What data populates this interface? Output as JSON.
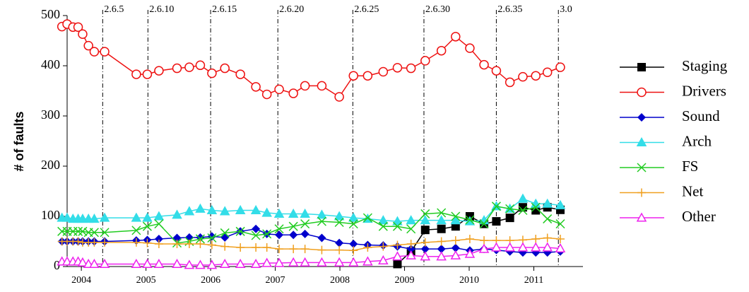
{
  "chart_data": {
    "type": "line",
    "y_label": "# of faults",
    "ylim": [
      0,
      500
    ],
    "yticks": [
      0,
      100,
      200,
      300,
      400,
      500
    ],
    "xlim": [
      2003.78,
      2011.76
    ],
    "xticks": [
      2004,
      2005,
      2006,
      2007,
      2008,
      2009,
      2010,
      2011
    ],
    "releases": [
      {
        "label": "2.6.5",
        "x": 2004.33
      },
      {
        "label": "2.6.10",
        "x": 2005.03
      },
      {
        "label": "2.6.15",
        "x": 2006.0
      },
      {
        "label": "2.6.20",
        "x": 2007.04
      },
      {
        "label": "2.6.25",
        "x": 2008.2
      },
      {
        "label": "2.6.30",
        "x": 2009.3
      },
      {
        "label": "2.6.35",
        "x": 2010.42
      },
      {
        "label": "3.0",
        "x": 2011.38
      }
    ],
    "x": [
      2003.7,
      2003.78,
      2003.87,
      2003.95,
      2004.02,
      2004.11,
      2004.2,
      2004.36,
      2004.85,
      2005.02,
      2005.2,
      2005.48,
      2005.67,
      2005.84,
      2006.02,
      2006.22,
      2006.46,
      2006.7,
      2006.87,
      2007.06,
      2007.28,
      2007.46,
      2007.72,
      2007.99,
      2008.21,
      2008.43,
      2008.67,
      2008.89,
      2009.1,
      2009.32,
      2009.57,
      2009.79,
      2010.01,
      2010.23,
      2010.42,
      2010.63,
      2010.83,
      2011.03,
      2011.21,
      2011.41
    ],
    "series": [
      {
        "name": "Staging",
        "color": "#000000",
        "marker": "square",
        "values": [
          null,
          null,
          null,
          null,
          null,
          null,
          null,
          null,
          null,
          null,
          null,
          null,
          null,
          null,
          null,
          null,
          null,
          null,
          null,
          null,
          null,
          null,
          null,
          null,
          null,
          null,
          null,
          5,
          30,
          73,
          75,
          80,
          100,
          85,
          90,
          97,
          118,
          112,
          118,
          113
        ]
      },
      {
        "name": "Drivers",
        "color": "#ee1111",
        "marker": "circle",
        "values": [
          478,
          483,
          477,
          477,
          463,
          440,
          428,
          428,
          383,
          383,
          390,
          395,
          397,
          401,
          385,
          395,
          383,
          358,
          343,
          353,
          345,
          360,
          360,
          338,
          380,
          380,
          388,
          396,
          395,
          410,
          430,
          458,
          435,
          402,
          390,
          367,
          378,
          380,
          387,
          397
        ]
      },
      {
        "name": "Sound",
        "color": "#0000cc",
        "marker": "diamond",
        "values": [
          50,
          50,
          50,
          50,
          50,
          50,
          50,
          50,
          52,
          53,
          55,
          57,
          58,
          58,
          60,
          58,
          70,
          75,
          65,
          63,
          63,
          65,
          57,
          47,
          45,
          43,
          42,
          40,
          35,
          35,
          35,
          37,
          32,
          35,
          33,
          30,
          28,
          28,
          28,
          30
        ]
      },
      {
        "name": "Arch",
        "color": "#33dde8",
        "marker": "triangle",
        "values": [
          97,
          97,
          95,
          95,
          95,
          95,
          95,
          97,
          97,
          97,
          100,
          103,
          110,
          115,
          112,
          110,
          112,
          112,
          107,
          105,
          105,
          105,
          103,
          100,
          97,
          95,
          92,
          90,
          92,
          92,
          92,
          92,
          90,
          92,
          120,
          115,
          135,
          125,
          125,
          122
        ]
      },
      {
        "name": "FS",
        "color": "#22cc22",
        "marker": "x",
        "values": [
          70,
          70,
          70,
          70,
          70,
          68,
          68,
          68,
          72,
          80,
          85,
          47,
          50,
          55,
          57,
          67,
          70,
          62,
          65,
          75,
          80,
          85,
          90,
          88,
          85,
          97,
          80,
          80,
          75,
          105,
          107,
          100,
          93,
          85,
          120,
          115,
          112,
          118,
          95,
          85
        ]
      },
      {
        "name": "Net",
        "color": "#f0a020",
        "marker": "plus",
        "values": [
          50,
          50,
          50,
          50,
          48,
          48,
          48,
          48,
          48,
          47,
          45,
          45,
          45,
          45,
          43,
          40,
          38,
          38,
          38,
          35,
          35,
          35,
          33,
          33,
          32,
          38,
          40,
          43,
          45,
          48,
          50,
          52,
          55,
          52,
          52,
          52,
          53,
          55,
          57,
          55
        ]
      },
      {
        "name": "Other",
        "color": "#ee22ee",
        "marker": "open-triangle",
        "values": [
          10,
          10,
          10,
          10,
          8,
          5,
          5,
          5,
          5,
          5,
          5,
          5,
          3,
          3,
          3,
          5,
          5,
          5,
          7,
          7,
          8,
          8,
          8,
          8,
          8,
          10,
          12,
          20,
          22,
          20,
          20,
          22,
          25,
          35,
          38,
          38,
          38,
          38,
          38,
          36
        ]
      }
    ]
  }
}
